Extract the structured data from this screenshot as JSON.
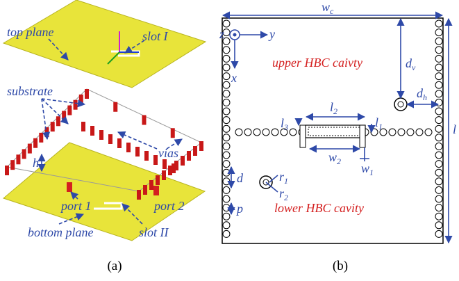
{
  "panel_a": {
    "caption": "(a)",
    "top_plane": "top plane",
    "slot_1": "slot I",
    "substrate": "substrate",
    "vias": "vias",
    "h": "h",
    "port_1": "port 1",
    "port_2": "port 2",
    "bottom_plane": "bottom plane",
    "slot_2": "slot II"
  },
  "panel_b": {
    "caption": "(b)",
    "wc": {
      "main": "w",
      "sub": "c"
    },
    "axes": {
      "z": "z",
      "y": "y",
      "x": "x"
    },
    "upper": "upper HBC caivty",
    "lower": "lower HBC cavity",
    "dv": {
      "main": "d",
      "sub": "v"
    },
    "dh": {
      "main": "d",
      "sub": "h"
    },
    "l2": {
      "main": "l",
      "sub": "2"
    },
    "l3": {
      "main": "l",
      "sub": "3"
    },
    "l1": {
      "main": "l",
      "sub": "1"
    },
    "w2": {
      "main": "w",
      "sub": "2"
    },
    "w1": {
      "main": "w",
      "sub": "1"
    },
    "r1": {
      "main": "r",
      "sub": "1"
    },
    "r2": {
      "main": "r",
      "sub": "2"
    },
    "d": "d",
    "p": "p",
    "lc": "l"
  }
}
